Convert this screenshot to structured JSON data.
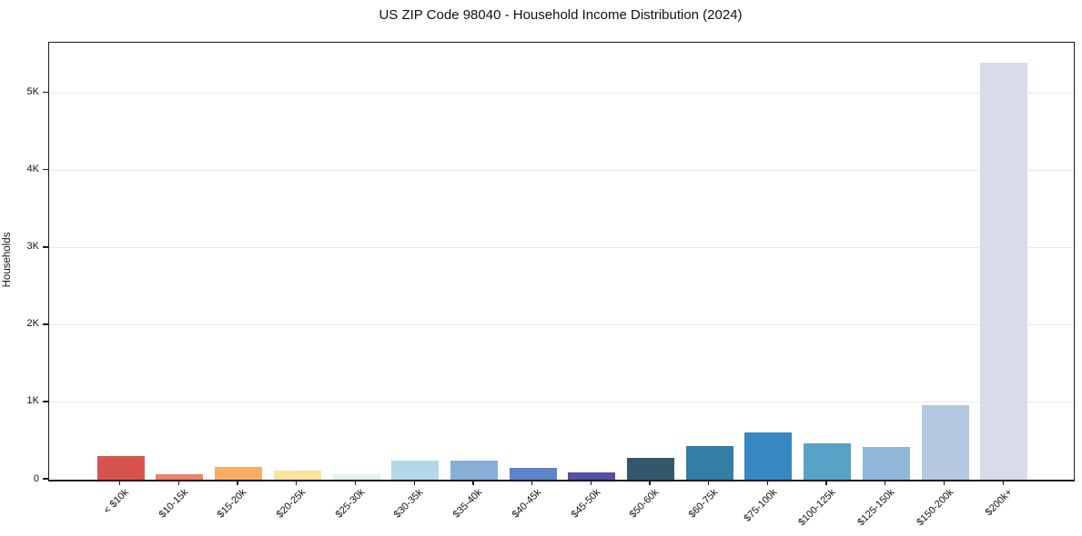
{
  "chart_data": {
    "type": "bar",
    "title": "US ZIP Code 98040 - Household Income Distribution (2024)",
    "xlabel": "",
    "ylabel": "Households",
    "categories": [
      "< $10k",
      "$10-15k",
      "$15-20k",
      "$20-25k",
      "$25-30k",
      "$30-35k",
      "$35-40k",
      "$40-45k",
      "$45-50k",
      "$50-60k",
      "$60-75k",
      "$75-100k",
      "$100-125k",
      "$125-150k",
      "$150-200k",
      "$200k+"
    ],
    "values": [
      310,
      65,
      165,
      120,
      70,
      245,
      245,
      150,
      90,
      285,
      430,
      615,
      465,
      420,
      970,
      5400
    ],
    "bar_colors": [
      "#d9534e",
      "#ec8266",
      "#f9ad63",
      "#fce39e",
      "#e2f1ed",
      "#b3d8e8",
      "#86b0d8",
      "#5e84c7",
      "#5350a5",
      "#34586b",
      "#347ea6",
      "#3787c1",
      "#58a2c8",
      "#90b6da",
      "#b5c8e1",
      "#d8dbe8"
    ],
    "ylim": [
      0,
      5655
    ],
    "ytick_values": [
      0,
      1000,
      2000,
      3000,
      4000,
      5000
    ],
    "ytick_labels": [
      "0",
      "1K",
      "2K",
      "3K",
      "4K",
      "5K"
    ],
    "grid": "horizontal-only",
    "legend": "none"
  },
  "colors": {
    "spine": "#1a1a1a",
    "grid": "#e9e9ec",
    "background": "#ffffff",
    "text": "#111111"
  }
}
